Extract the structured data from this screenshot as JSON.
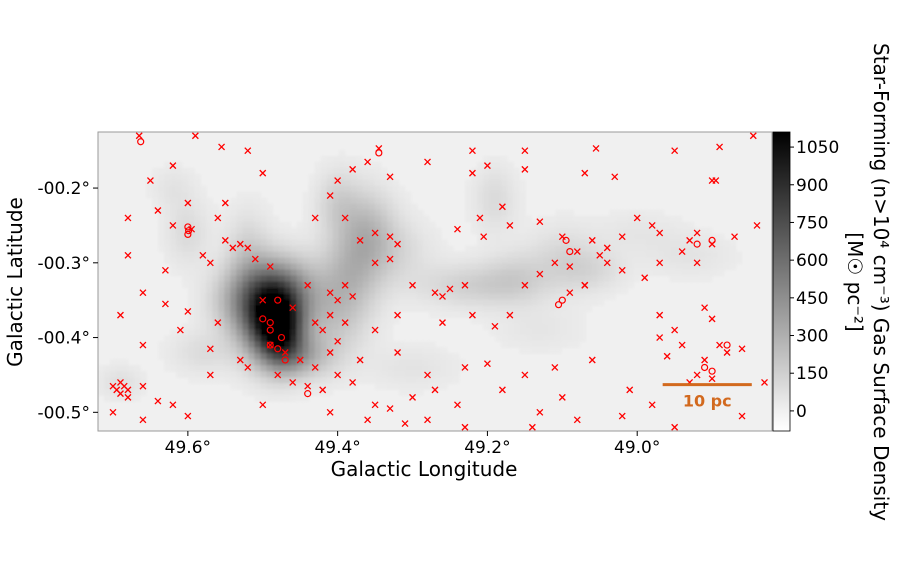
{
  "chart_data": {
    "type": "heatmap",
    "title": "",
    "xlabel": "Galactic Longitude",
    "ylabel": "Galactic Latitude",
    "xlim": [
      49.72,
      48.82
    ],
    "ylim": [
      -0.525,
      -0.125
    ],
    "xticks": [
      {
        "value": 49.6,
        "label": "49.6°"
      },
      {
        "value": 49.4,
        "label": "49.4°"
      },
      {
        "value": 49.2,
        "label": "49.2°"
      },
      {
        "value": 49.0,
        "label": "49.0°"
      }
    ],
    "yticks": [
      {
        "value": -0.2,
        "label": "-00.2°"
      },
      {
        "value": -0.3,
        "label": "-00.3°"
      },
      {
        "value": -0.4,
        "label": "-00.4°"
      },
      {
        "value": -0.5,
        "label": "-00.5°"
      }
    ],
    "colorbar": {
      "label_line1": "Star-Forming (n>10⁴ cm⁻³) Gas Surface Density",
      "label_line2": "[M☉ pc⁻²]",
      "range": [
        -80,
        1110
      ],
      "colormap": "gray_r",
      "ticks": [
        {
          "value": 0,
          "label": "0"
        },
        {
          "value": 150,
          "label": "150"
        },
        {
          "value": 300,
          "label": "300"
        },
        {
          "value": 450,
          "label": "450"
        },
        {
          "value": 600,
          "label": "600"
        },
        {
          "value": 750,
          "label": "750"
        },
        {
          "value": 900,
          "label": "900"
        },
        {
          "value": 1050,
          "label": "1050"
        }
      ]
    },
    "scale_bar": {
      "label": "10 pc",
      "color": "#d2691e",
      "l_start": 48.966,
      "l_end": 48.847,
      "b": -0.463
    },
    "gas_clumps": [
      {
        "l": 49.49,
        "b": -0.37,
        "sl": 0.028,
        "sb": 0.038,
        "amp": 1000
      },
      {
        "l": 49.475,
        "b": -0.395,
        "sl": 0.02,
        "sb": 0.03,
        "amp": 500
      },
      {
        "l": 49.47,
        "b": -0.335,
        "sl": 0.035,
        "sb": 0.03,
        "amp": 300
      },
      {
        "l": 49.45,
        "b": -0.425,
        "sl": 0.03,
        "sb": 0.02,
        "amp": 260
      },
      {
        "l": 49.54,
        "b": -0.35,
        "sl": 0.025,
        "sb": 0.03,
        "amp": 180
      },
      {
        "l": 49.52,
        "b": -0.295,
        "sl": 0.02,
        "sb": 0.04,
        "amp": 150
      },
      {
        "l": 49.405,
        "b": -0.37,
        "sl": 0.03,
        "sb": 0.04,
        "amp": 170
      },
      {
        "l": 49.38,
        "b": -0.31,
        "sl": 0.028,
        "sb": 0.04,
        "amp": 210
      },
      {
        "l": 49.36,
        "b": -0.25,
        "sl": 0.025,
        "sb": 0.035,
        "amp": 190
      },
      {
        "l": 49.4,
        "b": -0.22,
        "sl": 0.02,
        "sb": 0.03,
        "amp": 130
      },
      {
        "l": 49.33,
        "b": -0.285,
        "sl": 0.035,
        "sb": 0.03,
        "amp": 110
      },
      {
        "l": 49.22,
        "b": -0.33,
        "sl": 0.05,
        "sb": 0.02,
        "amp": 140
      },
      {
        "l": 49.16,
        "b": -0.32,
        "sl": 0.03,
        "sb": 0.025,
        "amp": 110
      },
      {
        "l": 49.19,
        "b": -0.215,
        "sl": 0.02,
        "sb": 0.03,
        "amp": 90
      },
      {
        "l": 49.1,
        "b": -0.295,
        "sl": 0.03,
        "sb": 0.03,
        "amp": 100
      },
      {
        "l": 49.06,
        "b": -0.31,
        "sl": 0.03,
        "sb": 0.02,
        "amp": 90
      },
      {
        "l": 49.6,
        "b": -0.26,
        "sl": 0.02,
        "sb": 0.03,
        "amp": 90
      },
      {
        "l": 49.58,
        "b": -0.42,
        "sl": 0.03,
        "sb": 0.02,
        "amp": 80
      },
      {
        "l": 49.69,
        "b": -0.46,
        "sl": 0.02,
        "sb": 0.015,
        "amp": 70
      },
      {
        "l": 49.62,
        "b": -0.2,
        "sl": 0.02,
        "sb": 0.02,
        "amp": 50
      },
      {
        "l": 49.3,
        "b": -0.44,
        "sl": 0.04,
        "sb": 0.02,
        "amp": 50
      },
      {
        "l": 48.93,
        "b": -0.29,
        "sl": 0.04,
        "sb": 0.02,
        "amp": 50
      },
      {
        "l": 49.0,
        "b": -0.26,
        "sl": 0.04,
        "sb": 0.02,
        "amp": 40
      },
      {
        "l": 49.13,
        "b": -0.39,
        "sl": 0.04,
        "sb": 0.02,
        "amp": 40
      }
    ],
    "markers_x": [
      [
        49.665,
        -0.13
      ],
      [
        49.59,
        -0.13
      ],
      [
        49.555,
        -0.145
      ],
      [
        49.52,
        -0.15
      ],
      [
        49.345,
        -0.147
      ],
      [
        49.22,
        -0.15
      ],
      [
        49.15,
        -0.15
      ],
      [
        49.055,
        -0.147
      ],
      [
        48.95,
        -0.15
      ],
      [
        48.89,
        -0.145
      ],
      [
        48.845,
        -0.13
      ],
      [
        49.65,
        -0.19
      ],
      [
        49.62,
        -0.17
      ],
      [
        49.6,
        -0.22
      ],
      [
        49.55,
        -0.22
      ],
      [
        49.5,
        -0.18
      ],
      [
        49.4,
        -0.19
      ],
      [
        49.38,
        -0.175
      ],
      [
        49.36,
        -0.165
      ],
      [
        49.33,
        -0.185
      ],
      [
        49.28,
        -0.165
      ],
      [
        49.22,
        -0.18
      ],
      [
        49.2,
        -0.17
      ],
      [
        49.15,
        -0.175
      ],
      [
        49.07,
        -0.18
      ],
      [
        49.03,
        -0.185
      ],
      [
        48.9,
        -0.19
      ],
      [
        48.895,
        -0.19
      ],
      [
        49.68,
        -0.24
      ],
      [
        49.64,
        -0.23
      ],
      [
        49.62,
        -0.25
      ],
      [
        49.595,
        -0.255
      ],
      [
        49.56,
        -0.24
      ],
      [
        49.55,
        -0.27
      ],
      [
        49.54,
        -0.28
      ],
      [
        49.53,
        -0.275
      ],
      [
        49.52,
        -0.28
      ],
      [
        49.43,
        -0.24
      ],
      [
        49.41,
        -0.21
      ],
      [
        49.39,
        -0.24
      ],
      [
        49.37,
        -0.27
      ],
      [
        49.35,
        -0.26
      ],
      [
        49.33,
        -0.265
      ],
      [
        49.32,
        -0.275
      ],
      [
        49.24,
        -0.255
      ],
      [
        49.21,
        -0.24
      ],
      [
        49.205,
        -0.265
      ],
      [
        49.18,
        -0.225
      ],
      [
        49.17,
        -0.25
      ],
      [
        49.13,
        -0.245
      ],
      [
        49.1,
        -0.265
      ],
      [
        49.08,
        -0.285
      ],
      [
        49.06,
        -0.27
      ],
      [
        49.04,
        -0.28
      ],
      [
        49.02,
        -0.265
      ],
      [
        49.0,
        -0.24
      ],
      [
        48.98,
        -0.25
      ],
      [
        48.97,
        -0.26
      ],
      [
        48.93,
        -0.27
      ],
      [
        48.92,
        -0.26
      ],
      [
        48.9,
        -0.275
      ],
      [
        48.87,
        -0.265
      ],
      [
        48.84,
        -0.25
      ],
      [
        49.68,
        -0.29
      ],
      [
        49.63,
        -0.31
      ],
      [
        49.58,
        -0.29
      ],
      [
        49.57,
        -0.3
      ],
      [
        49.51,
        -0.295
      ],
      [
        49.49,
        -0.305
      ],
      [
        49.44,
        -0.33
      ],
      [
        49.41,
        -0.34
      ],
      [
        49.4,
        -0.35
      ],
      [
        49.39,
        -0.33
      ],
      [
        49.38,
        -0.345
      ],
      [
        49.35,
        -0.3
      ],
      [
        49.33,
        -0.295
      ],
      [
        49.3,
        -0.33
      ],
      [
        49.27,
        -0.34
      ],
      [
        49.26,
        -0.345
      ],
      [
        49.25,
        -0.335
      ],
      [
        49.23,
        -0.33
      ],
      [
        49.15,
        -0.33
      ],
      [
        49.13,
        -0.315
      ],
      [
        49.11,
        -0.3
      ],
      [
        49.09,
        -0.305
      ],
      [
        49.07,
        -0.33
      ],
      [
        49.05,
        -0.29
      ],
      [
        49.04,
        -0.3
      ],
      [
        49.02,
        -0.31
      ],
      [
        48.99,
        -0.32
      ],
      [
        48.97,
        -0.3
      ],
      [
        48.94,
        -0.285
      ],
      [
        48.92,
        -0.3
      ],
      [
        49.66,
        -0.34
      ],
      [
        49.63,
        -0.355
      ],
      [
        49.6,
        -0.365
      ],
      [
        49.56,
        -0.38
      ],
      [
        49.5,
        -0.35
      ],
      [
        49.46,
        -0.36
      ],
      [
        49.43,
        -0.38
      ],
      [
        49.42,
        -0.39
      ],
      [
        49.41,
        -0.37
      ],
      [
        49.39,
        -0.38
      ],
      [
        49.35,
        -0.39
      ],
      [
        49.32,
        -0.37
      ],
      [
        49.26,
        -0.38
      ],
      [
        49.22,
        -0.37
      ],
      [
        49.19,
        -0.385
      ],
      [
        49.17,
        -0.37
      ],
      [
        49.09,
        -0.34
      ],
      [
        49.07,
        -0.33
      ],
      [
        48.97,
        -0.37
      ],
      [
        48.95,
        -0.39
      ],
      [
        48.91,
        -0.36
      ],
      [
        48.9,
        -0.375
      ],
      [
        49.69,
        -0.37
      ],
      [
        49.66,
        -0.41
      ],
      [
        49.61,
        -0.39
      ],
      [
        49.57,
        -0.415
      ],
      [
        49.53,
        -0.43
      ],
      [
        49.49,
        -0.41
      ],
      [
        49.47,
        -0.42
      ],
      [
        49.45,
        -0.43
      ],
      [
        49.43,
        -0.44
      ],
      [
        49.41,
        -0.42
      ],
      [
        49.4,
        -0.405
      ],
      [
        49.37,
        -0.43
      ],
      [
        49.32,
        -0.42
      ],
      [
        49.28,
        -0.45
      ],
      [
        49.23,
        -0.44
      ],
      [
        49.2,
        -0.435
      ],
      [
        49.15,
        -0.45
      ],
      [
        49.11,
        -0.44
      ],
      [
        49.06,
        -0.43
      ],
      [
        48.97,
        -0.4
      ],
      [
        48.96,
        -0.425
      ],
      [
        48.94,
        -0.41
      ],
      [
        48.91,
        -0.43
      ],
      [
        48.89,
        -0.41
      ],
      [
        48.88,
        -0.42
      ],
      [
        48.86,
        -0.415
      ],
      [
        49.7,
        -0.465
      ],
      [
        49.695,
        -0.47
      ],
      [
        49.69,
        -0.46
      ],
      [
        49.69,
        -0.475
      ],
      [
        49.685,
        -0.465
      ],
      [
        49.68,
        -0.47
      ],
      [
        49.68,
        -0.48
      ],
      [
        49.66,
        -0.465
      ],
      [
        49.64,
        -0.485
      ],
      [
        49.62,
        -0.49
      ],
      [
        49.57,
        -0.45
      ],
      [
        49.52,
        -0.44
      ],
      [
        49.48,
        -0.45
      ],
      [
        49.46,
        -0.46
      ],
      [
        49.44,
        -0.465
      ],
      [
        49.42,
        -0.47
      ],
      [
        49.4,
        -0.45
      ],
      [
        49.38,
        -0.46
      ],
      [
        49.35,
        -0.49
      ],
      [
        49.33,
        -0.495
      ],
      [
        49.3,
        -0.48
      ],
      [
        49.27,
        -0.47
      ],
      [
        49.24,
        -0.49
      ],
      [
        49.18,
        -0.47
      ],
      [
        49.13,
        -0.5
      ],
      [
        49.1,
        -0.48
      ],
      [
        49.01,
        -0.47
      ],
      [
        48.98,
        -0.49
      ],
      [
        48.93,
        -0.46
      ],
      [
        48.92,
        -0.45
      ],
      [
        48.9,
        -0.455
      ],
      [
        49.7,
        -0.5
      ],
      [
        49.66,
        -0.51
      ],
      [
        49.6,
        -0.505
      ],
      [
        49.5,
        -0.49
      ],
      [
        49.41,
        -0.5
      ],
      [
        49.36,
        -0.51
      ],
      [
        49.31,
        -0.515
      ],
      [
        49.28,
        -0.51
      ],
      [
        49.23,
        -0.52
      ],
      [
        49.14,
        -0.52
      ],
      [
        49.08,
        -0.51
      ],
      [
        49.02,
        -0.505
      ],
      [
        48.95,
        -0.52
      ],
      [
        48.86,
        -0.505
      ],
      [
        48.83,
        -0.46
      ]
    ],
    "markers_o": [
      [
        49.663,
        -0.138
      ],
      [
        49.345,
        -0.153
      ],
      [
        49.6,
        -0.252
      ],
      [
        49.599,
        -0.257
      ],
      [
        49.6,
        -0.262
      ],
      [
        49.48,
        -0.35
      ],
      [
        49.5,
        -0.375
      ],
      [
        49.49,
        -0.38
      ],
      [
        49.49,
        -0.39
      ],
      [
        49.475,
        -0.4
      ],
      [
        49.49,
        -0.41
      ],
      [
        49.48,
        -0.415
      ],
      [
        49.47,
        -0.43
      ],
      [
        49.44,
        -0.475
      ],
      [
        49.095,
        -0.27
      ],
      [
        49.09,
        -0.285
      ],
      [
        49.1,
        -0.35
      ],
      [
        49.105,
        -0.356
      ],
      [
        48.92,
        -0.275
      ],
      [
        48.9,
        -0.27
      ],
      [
        48.88,
        -0.41
      ],
      [
        48.91,
        -0.44
      ],
      [
        48.9,
        -0.445
      ]
    ]
  }
}
